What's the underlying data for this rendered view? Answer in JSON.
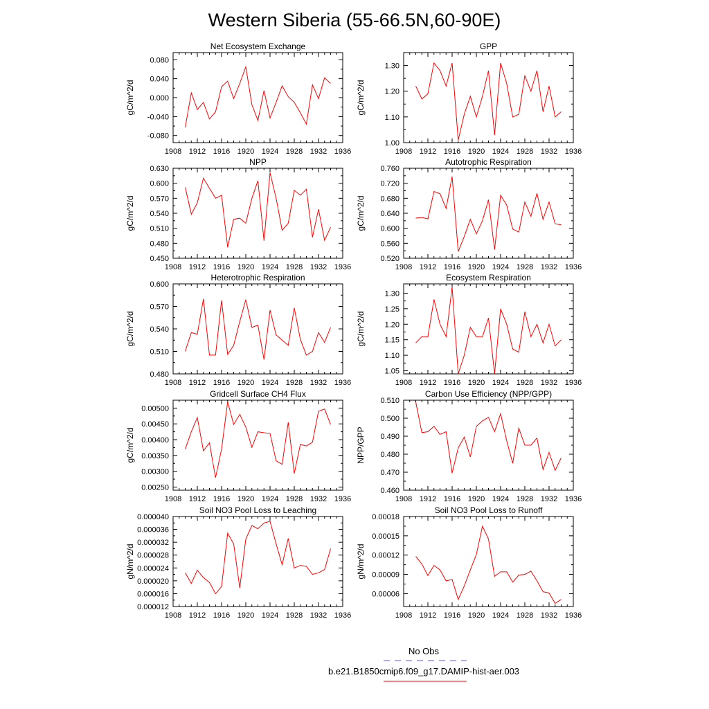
{
  "title": "Western Siberia (55-66.5N,60-90E)",
  "legend": {
    "obs_label": "No Obs",
    "obs_color": "#5555ff",
    "model_label": "b.e21.B1850cmip6.f09_g17.DAMIP-hist-aer.003",
    "model_color": "#ff0000"
  },
  "chart_data": [
    {
      "type": "line",
      "title": "Net Ecosystem Exchange",
      "ylabel": "gC/m^2/d",
      "xlim": [
        1908,
        1936
      ],
      "xticks": [
        1908,
        1912,
        1916,
        1920,
        1924,
        1928,
        1932,
        1936
      ],
      "ylim": [
        -0.095,
        0.095
      ],
      "yticks": [
        -0.08,
        -0.04,
        0.0,
        0.04,
        0.08
      ],
      "ytick_labels": [
        "-0.080",
        "-0.040",
        "0.000",
        "0.040",
        "0.080"
      ],
      "series": [
        {
          "x": [
            1910,
            1911,
            1912,
            1913,
            1914,
            1915,
            1916,
            1917,
            1918,
            1919,
            1920,
            1921,
            1922,
            1923,
            1924,
            1925,
            1926,
            1927,
            1928,
            1929,
            1930,
            1931,
            1932,
            1933,
            1934
          ],
          "y": [
            -0.063,
            0.01,
            -0.025,
            -0.01,
            -0.045,
            -0.03,
            0.023,
            0.035,
            -0.002,
            0.03,
            0.065,
            -0.015,
            -0.048,
            0.015,
            -0.043,
            -0.01,
            0.025,
            0.002,
            -0.01,
            -0.032,
            -0.056,
            0.027,
            -0.002,
            0.042,
            0.03
          ]
        }
      ]
    },
    {
      "type": "line",
      "title": "GPP",
      "ylabel": "gC/m^2/d",
      "xlim": [
        1908,
        1936
      ],
      "xticks": [
        1908,
        1912,
        1916,
        1920,
        1924,
        1928,
        1932,
        1936
      ],
      "ylim": [
        1.0,
        1.35
      ],
      "yticks": [
        1.0,
        1.1,
        1.2,
        1.3
      ],
      "ytick_labels": [
        "1.00",
        "1.10",
        "1.20",
        "1.30"
      ],
      "series": [
        {
          "x": [
            1910,
            1911,
            1912,
            1913,
            1914,
            1915,
            1916,
            1917,
            1918,
            1919,
            1920,
            1921,
            1922,
            1923,
            1924,
            1925,
            1926,
            1927,
            1928,
            1929,
            1930,
            1931,
            1932,
            1933,
            1934
          ],
          "y": [
            1.22,
            1.17,
            1.19,
            1.31,
            1.28,
            1.22,
            1.31,
            1.01,
            1.11,
            1.18,
            1.1,
            1.18,
            1.28,
            1.03,
            1.31,
            1.23,
            1.1,
            1.11,
            1.26,
            1.2,
            1.28,
            1.12,
            1.22,
            1.1,
            1.12
          ]
        }
      ]
    },
    {
      "type": "line",
      "title": "NPP",
      "ylabel": "gC/m^2/d",
      "xlim": [
        1908,
        1936
      ],
      "xticks": [
        1908,
        1912,
        1916,
        1920,
        1924,
        1928,
        1932,
        1936
      ],
      "ylim": [
        0.45,
        0.63
      ],
      "yticks": [
        0.45,
        0.48,
        0.51,
        0.54,
        0.57,
        0.6,
        0.63
      ],
      "ytick_labels": [
        "0.450",
        "0.480",
        "0.510",
        "0.540",
        "0.570",
        "0.600",
        "0.630"
      ],
      "series": [
        {
          "x": [
            1910,
            1911,
            1912,
            1913,
            1914,
            1915,
            1916,
            1917,
            1918,
            1919,
            1920,
            1921,
            1922,
            1923,
            1924,
            1925,
            1926,
            1927,
            1928,
            1929,
            1930,
            1931,
            1932,
            1933,
            1934
          ],
          "y": [
            0.592,
            0.538,
            0.561,
            0.61,
            0.59,
            0.57,
            0.576,
            0.472,
            0.528,
            0.53,
            0.52,
            0.57,
            0.605,
            0.485,
            0.621,
            0.57,
            0.506,
            0.52,
            0.586,
            0.576,
            0.588,
            0.492,
            0.548,
            0.486,
            0.512
          ]
        }
      ]
    },
    {
      "type": "line",
      "title": "Autotrophic Respiration",
      "ylabel": "gC/m^2/d",
      "xlim": [
        1908,
        1936
      ],
      "xticks": [
        1908,
        1912,
        1916,
        1920,
        1924,
        1928,
        1932,
        1936
      ],
      "ylim": [
        0.52,
        0.76
      ],
      "yticks": [
        0.52,
        0.56,
        0.6,
        0.64,
        0.68,
        0.72,
        0.76
      ],
      "ytick_labels": [
        "0.520",
        "0.560",
        "0.600",
        "0.640",
        "0.680",
        "0.720",
        "0.760"
      ],
      "series": [
        {
          "x": [
            1910,
            1911,
            1912,
            1913,
            1914,
            1915,
            1916,
            1917,
            1918,
            1919,
            1920,
            1921,
            1922,
            1923,
            1924,
            1925,
            1926,
            1927,
            1928,
            1929,
            1930,
            1931,
            1932,
            1933,
            1934
          ],
          "y": [
            0.627,
            0.629,
            0.625,
            0.698,
            0.692,
            0.653,
            0.738,
            0.538,
            0.578,
            0.624,
            0.585,
            0.62,
            0.676,
            0.543,
            0.688,
            0.662,
            0.598,
            0.59,
            0.67,
            0.632,
            0.693,
            0.624,
            0.67,
            0.612,
            0.609
          ]
        }
      ]
    },
    {
      "type": "line",
      "title": "Heterotrophic Respiration",
      "ylabel": "gC/m^2/d",
      "xlim": [
        1908,
        1936
      ],
      "xticks": [
        1908,
        1912,
        1916,
        1920,
        1924,
        1928,
        1932,
        1936
      ],
      "ylim": [
        0.48,
        0.6
      ],
      "yticks": [
        0.48,
        0.51,
        0.54,
        0.57,
        0.6
      ],
      "ytick_labels": [
        "0.480",
        "0.510",
        "0.540",
        "0.570",
        "0.600"
      ],
      "series": [
        {
          "x": [
            1910,
            1911,
            1912,
            1913,
            1914,
            1915,
            1916,
            1917,
            1918,
            1919,
            1920,
            1921,
            1922,
            1923,
            1924,
            1925,
            1926,
            1927,
            1928,
            1929,
            1930,
            1931,
            1932,
            1933,
            1934
          ],
          "y": [
            0.51,
            0.535,
            0.533,
            0.58,
            0.505,
            0.505,
            0.578,
            0.506,
            0.518,
            0.55,
            0.579,
            0.542,
            0.545,
            0.499,
            0.565,
            0.532,
            0.525,
            0.518,
            0.568,
            0.526,
            0.505,
            0.51,
            0.535,
            0.522,
            0.542
          ]
        }
      ]
    },
    {
      "type": "line",
      "title": "Ecosystem Respiration",
      "ylabel": "gC/m^2/d",
      "xlim": [
        1908,
        1936
      ],
      "xticks": [
        1908,
        1912,
        1916,
        1920,
        1924,
        1928,
        1932,
        1936
      ],
      "ylim": [
        1.04,
        1.33
      ],
      "yticks": [
        1.05,
        1.1,
        1.15,
        1.2,
        1.25,
        1.3
      ],
      "ytick_labels": [
        "1.05",
        "1.10",
        "1.15",
        "1.20",
        "1.25",
        "1.30"
      ],
      "series": [
        {
          "x": [
            1910,
            1911,
            1912,
            1913,
            1914,
            1915,
            1916,
            1917,
            1918,
            1919,
            1920,
            1921,
            1922,
            1923,
            1924,
            1925,
            1926,
            1927,
            1928,
            1929,
            1930,
            1931,
            1932,
            1933,
            1934
          ],
          "y": [
            1.14,
            1.16,
            1.16,
            1.28,
            1.2,
            1.16,
            1.32,
            1.04,
            1.1,
            1.19,
            1.16,
            1.16,
            1.22,
            1.04,
            1.25,
            1.2,
            1.12,
            1.11,
            1.24,
            1.16,
            1.2,
            1.14,
            1.2,
            1.13,
            1.15
          ]
        }
      ]
    },
    {
      "type": "line",
      "title": "Gridcell Surface CH4 Flux",
      "ylabel": "gC/m^2/d",
      "xlim": [
        1908,
        1936
      ],
      "xticks": [
        1908,
        1912,
        1916,
        1920,
        1924,
        1928,
        1932,
        1936
      ],
      "ylim": [
        0.0024,
        0.00525
      ],
      "yticks": [
        0.0025,
        0.003,
        0.0035,
        0.004,
        0.0045,
        0.005
      ],
      "ytick_labels": [
        "0.00250",
        "0.00300",
        "0.00350",
        "0.00400",
        "0.00450",
        "0.00500"
      ],
      "series": [
        {
          "x": [
            1910,
            1911,
            1912,
            1913,
            1914,
            1915,
            1916,
            1917,
            1918,
            1919,
            1920,
            1921,
            1922,
            1923,
            1924,
            1925,
            1926,
            1927,
            1928,
            1929,
            1930,
            1931,
            1932,
            1933,
            1934
          ],
          "y": [
            0.0037,
            0.00425,
            0.0047,
            0.00365,
            0.0039,
            0.0028,
            0.0037,
            0.0052,
            0.00448,
            0.0048,
            0.0044,
            0.00376,
            0.00425,
            0.00422,
            0.0042,
            0.00333,
            0.00322,
            0.00455,
            0.00293,
            0.00385,
            0.0038,
            0.00392,
            0.0049,
            0.00497,
            0.00448
          ]
        }
      ]
    },
    {
      "type": "line",
      "title": "Carbon Use Efficiency (NPP/GPP)",
      "ylabel": "NPP/GPP",
      "xlim": [
        1908,
        1936
      ],
      "xticks": [
        1908,
        1912,
        1916,
        1920,
        1924,
        1928,
        1932,
        1936
      ],
      "ylim": [
        0.46,
        0.51
      ],
      "yticks": [
        0.46,
        0.47,
        0.48,
        0.49,
        0.5,
        0.51
      ],
      "ytick_labels": [
        "0.460",
        "0.470",
        "0.480",
        "0.490",
        "0.500",
        "0.510"
      ],
      "series": [
        {
          "x": [
            1910,
            1911,
            1912,
            1913,
            1914,
            1915,
            1916,
            1917,
            1918,
            1919,
            1920,
            1921,
            1922,
            1923,
            1924,
            1925,
            1926,
            1927,
            1928,
            1929,
            1930,
            1931,
            1932,
            1933,
            1934
          ],
          "y": [
            0.509,
            0.492,
            0.4925,
            0.4955,
            0.491,
            0.4925,
            0.4695,
            0.4835,
            0.4895,
            0.4785,
            0.4955,
            0.4985,
            0.5005,
            0.4925,
            0.5025,
            0.4875,
            0.475,
            0.4945,
            0.485,
            0.485,
            0.489,
            0.4715,
            0.481,
            0.471,
            0.478
          ]
        }
      ]
    },
    {
      "type": "line",
      "title": "Soil NO3 Pool Loss to Leaching",
      "ylabel": "gN/m^2/d",
      "xlim": [
        1908,
        1936
      ],
      "xticks": [
        1908,
        1912,
        1916,
        1920,
        1924,
        1928,
        1932,
        1936
      ],
      "ylim": [
        1.2e-05,
        4e-05
      ],
      "yticks": [
        1.2e-05,
        1.6e-05,
        2e-05,
        2.4e-05,
        2.8e-05,
        3.2e-05,
        3.6e-05,
        4e-05
      ],
      "ytick_labels": [
        "0.000012",
        "0.000016",
        "0.000020",
        "0.000024",
        "0.000028",
        "0.000032",
        "0.000036",
        "0.000040"
      ],
      "series": [
        {
          "x": [
            1910,
            1911,
            1912,
            1913,
            1914,
            1915,
            1916,
            1917,
            1918,
            1919,
            1920,
            1921,
            1922,
            1923,
            1924,
            1925,
            1926,
            1927,
            1928,
            1929,
            1930,
            1931,
            1932,
            1933,
            1934
          ],
          "y": [
            2.25e-05,
            1.92e-05,
            2.33e-05,
            2.1e-05,
            1.95e-05,
            1.6e-05,
            1.82e-05,
            3.48e-05,
            3.15e-05,
            1.78e-05,
            3.3e-05,
            3.72e-05,
            3.62e-05,
            3.8e-05,
            3.85e-05,
            3.15e-05,
            2.5e-05,
            3.32e-05,
            2.4e-05,
            2.48e-05,
            2.45e-05,
            2.2e-05,
            2.25e-05,
            2.35e-05,
            3e-05
          ]
        }
      ]
    },
    {
      "type": "line",
      "title": "Soil NO3 Pool Loss to Runoff",
      "ylabel": "gN/m^2/d",
      "xlim": [
        1908,
        1936
      ],
      "xticks": [
        1908,
        1912,
        1916,
        1920,
        1924,
        1928,
        1932,
        1936
      ],
      "ylim": [
        4e-05,
        0.00018
      ],
      "yticks": [
        6e-05,
        9e-05,
        0.00012,
        0.00015,
        0.00018
      ],
      "ytick_labels": [
        "0.00006",
        "0.00009",
        "0.00012",
        "0.00015",
        "0.00018"
      ],
      "series": [
        {
          "x": [
            1910,
            1911,
            1912,
            1913,
            1914,
            1915,
            1916,
            1917,
            1918,
            1919,
            1920,
            1921,
            1922,
            1923,
            1924,
            1925,
            1926,
            1927,
            1928,
            1929,
            1930,
            1931,
            1932,
            1933,
            1934
          ],
          "y": [
            0.000118,
            0.000106,
            8.8e-05,
            0.000104,
            9.7e-05,
            8e-05,
            8.2e-05,
            5.1e-05,
            7.2e-05,
            9.7e-05,
            0.000121,
            0.000165,
            0.000145,
            8.7e-05,
            9.4e-05,
            9.4e-05,
            7.8e-05,
            8.9e-05,
            9e-05,
            9.5e-05,
            8e-05,
            6.3e-05,
            6.1e-05,
            4.5e-05,
            5.1e-05
          ]
        }
      ]
    }
  ]
}
